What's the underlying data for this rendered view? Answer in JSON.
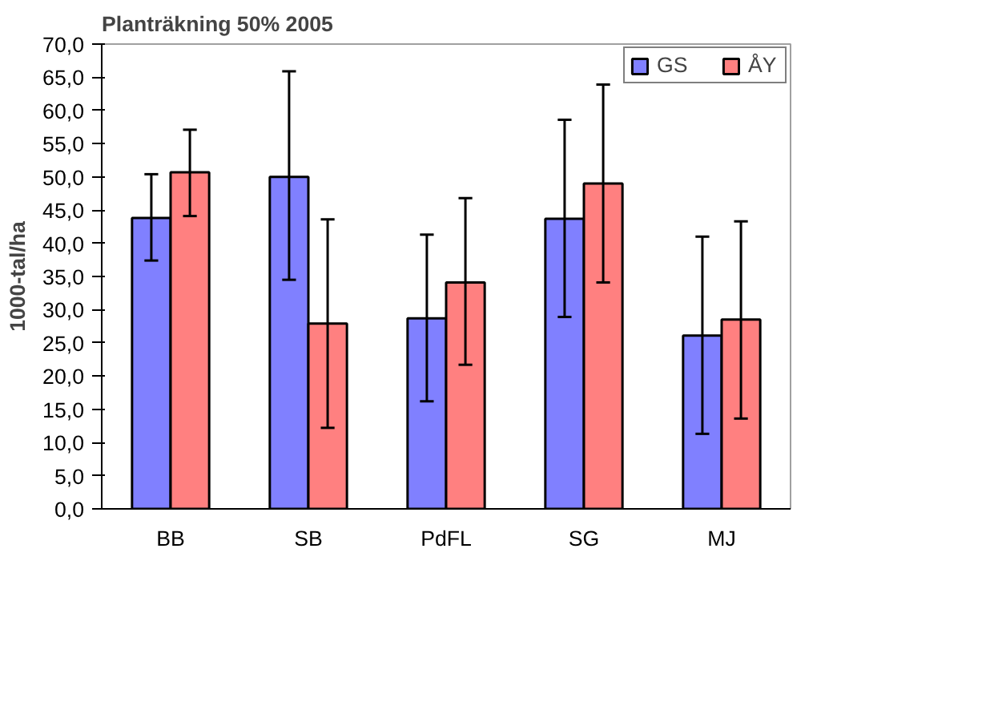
{
  "chart_data": {
    "type": "bar",
    "title": "Planträkning 50% 2005",
    "ylabel": "1000-tal/ha",
    "categories": [
      "BB",
      "SB",
      "PdFL",
      "SG",
      "MJ"
    ],
    "series": [
      {
        "name": "GS",
        "color": "#8080ff",
        "values": [
          43.8,
          50.0,
          28.7,
          43.7,
          26.1
        ],
        "errors": [
          [
            37.4,
            50.4
          ],
          [
            34.5,
            65.9
          ],
          [
            16.2,
            41.3
          ],
          [
            28.9,
            58.6
          ],
          [
            11.3,
            41.0
          ]
        ]
      },
      {
        "name": "ÅY",
        "color": "#ff8080",
        "values": [
          50.7,
          27.9,
          34.1,
          49.0,
          28.5
        ],
        "errors": [
          [
            44.1,
            57.1
          ],
          [
            12.2,
            43.6
          ],
          [
            21.7,
            46.8
          ],
          [
            34.1,
            63.9
          ],
          [
            13.6,
            43.3
          ]
        ]
      }
    ],
    "ylim": [
      0,
      70
    ],
    "yticks": [
      {
        "value": 0,
        "label": "0,0"
      },
      {
        "value": 5,
        "label": "5,0"
      },
      {
        "value": 10,
        "label": "10,0"
      },
      {
        "value": 15,
        "label": "15,0"
      },
      {
        "value": 20,
        "label": "20,0"
      },
      {
        "value": 25,
        "label": "25,0"
      },
      {
        "value": 30,
        "label": "30,0"
      },
      {
        "value": 35,
        "label": "35,0"
      },
      {
        "value": 40,
        "label": "40,0"
      },
      {
        "value": 45,
        "label": "45,0"
      },
      {
        "value": 50,
        "label": "50,0"
      },
      {
        "value": 55,
        "label": "55,0"
      },
      {
        "value": 60,
        "label": "60,0"
      },
      {
        "value": 65,
        "label": "65,0"
      },
      {
        "value": 70,
        "label": "70,0"
      }
    ],
    "grid": false,
    "legend": "top right"
  }
}
